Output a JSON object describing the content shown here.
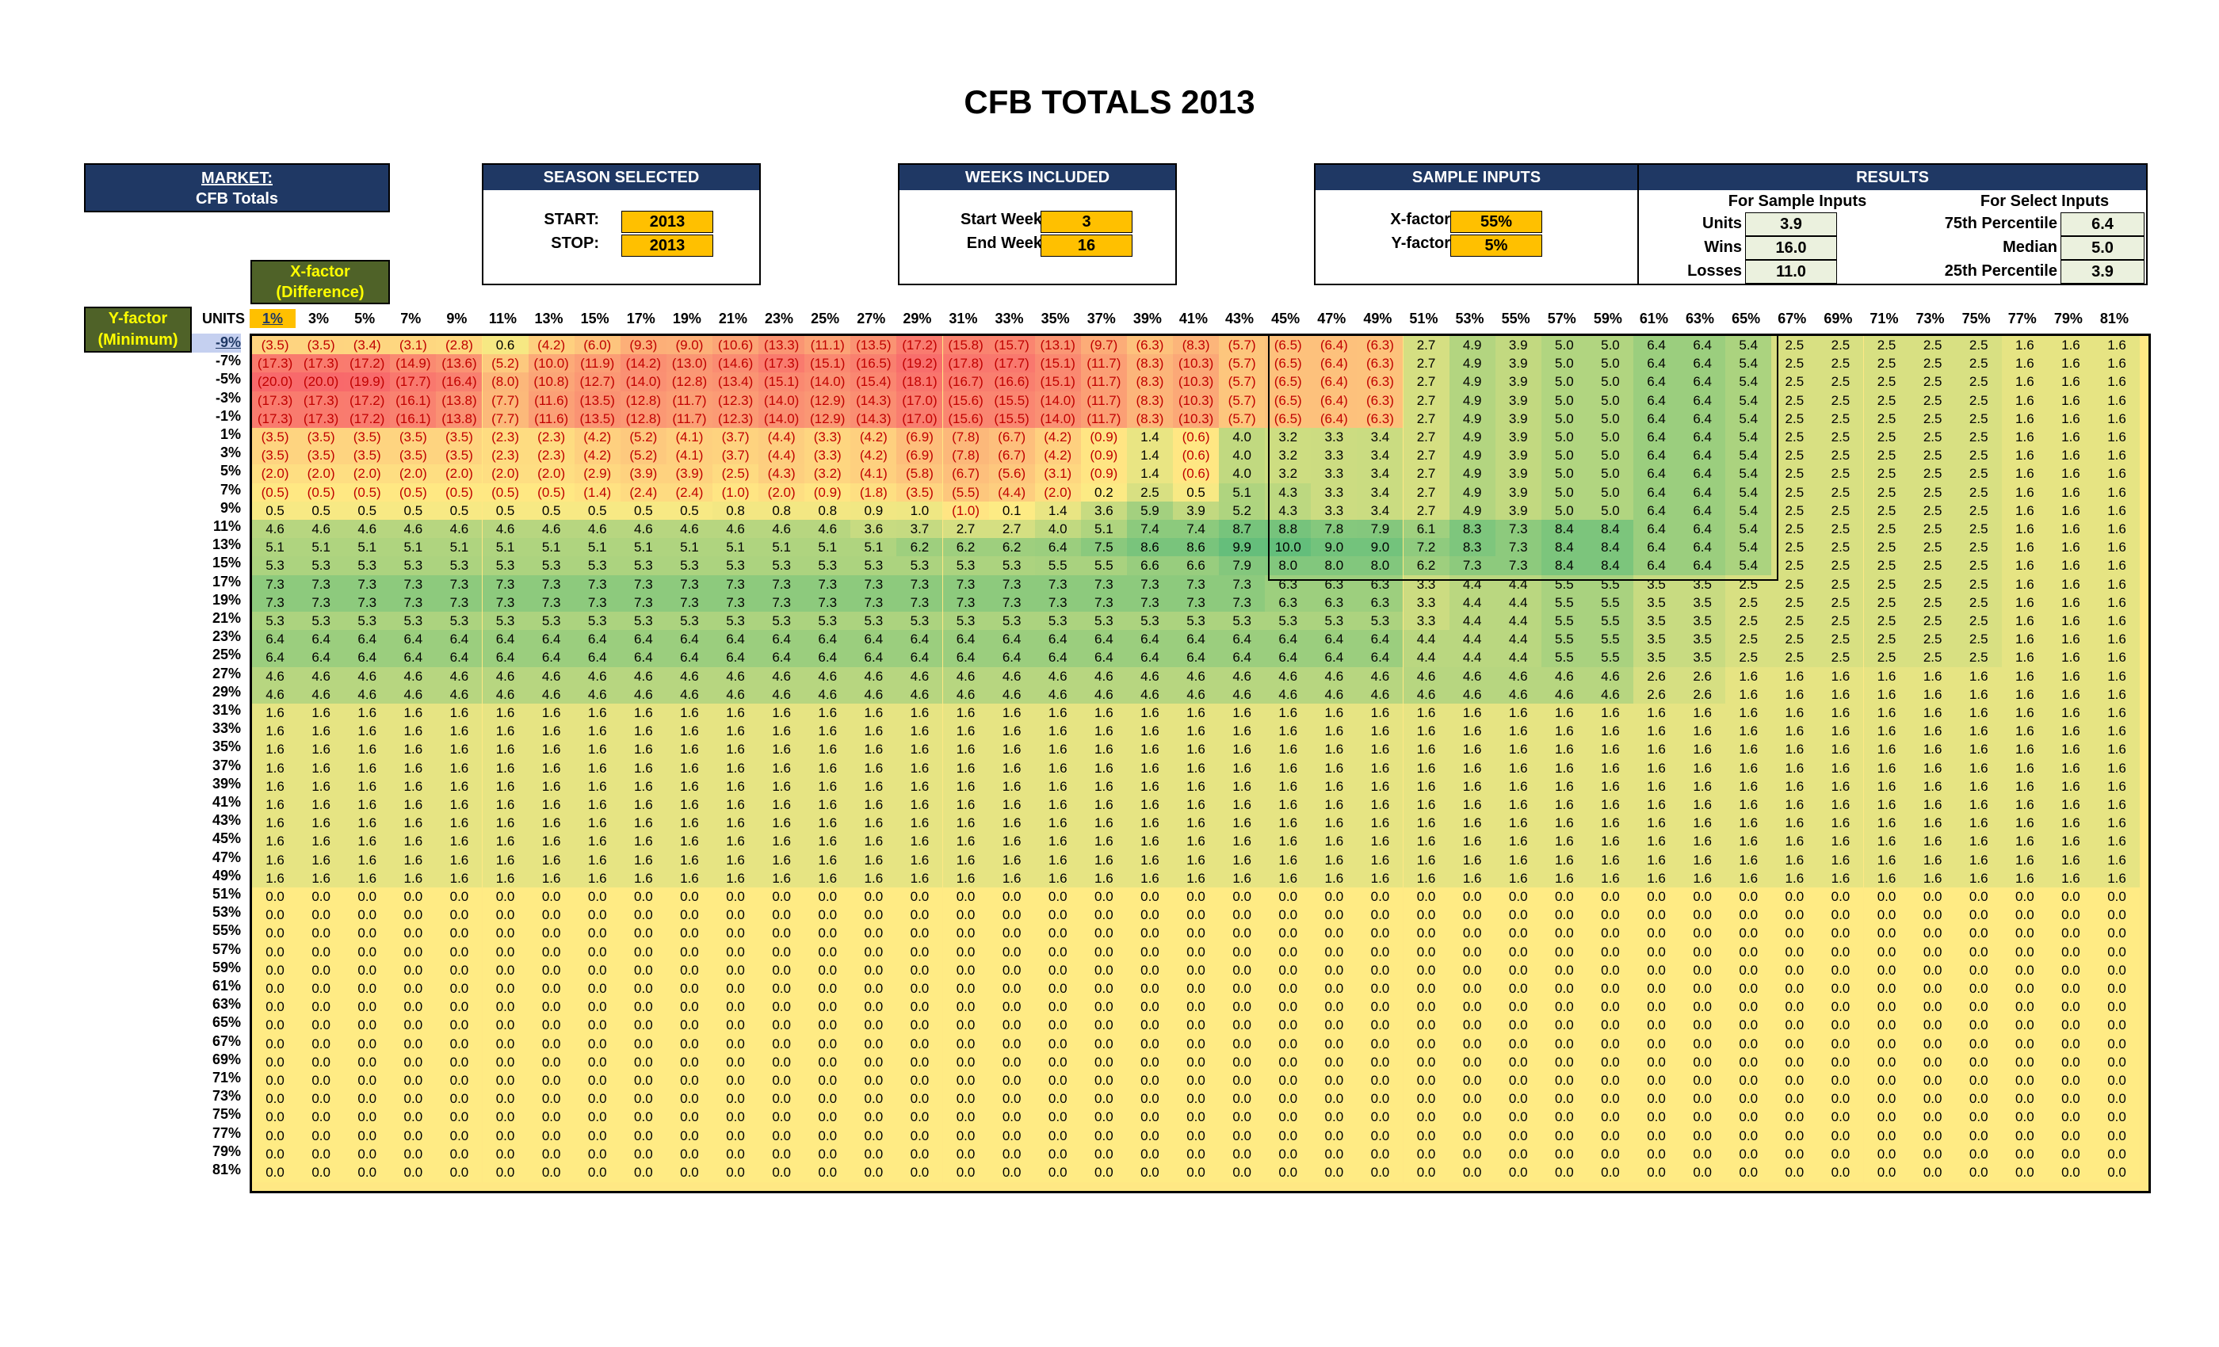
{
  "title": "CFB TOTALS 2013",
  "market": {
    "label": "MARKET:",
    "value": "CFB Totals"
  },
  "season": {
    "header": "SEASON SELECTED",
    "start_label": "START:",
    "start_value": "2013",
    "stop_label": "STOP:",
    "stop_value": "2013"
  },
  "weeks": {
    "header": "WEEKS INCLUDED",
    "start_label": "Start Week",
    "start_value": "3",
    "end_label": "End Week",
    "end_value": "16"
  },
  "sample_inputs": {
    "header": "SAMPLE INPUTS",
    "x_label": "X-factor",
    "x_value": "55%",
    "y_label": "Y-factor",
    "y_value": "5%"
  },
  "results": {
    "header": "RESULTS",
    "sample_header": "For Sample Inputs",
    "select_header": "For Select Inputs",
    "units_label": "Units",
    "units_value": "3.9",
    "wins_label": "Wins",
    "wins_value": "16.0",
    "losses_label": "Losses",
    "losses_value": "11.0",
    "p75_label": "75th Percentile",
    "p75_value": "6.4",
    "median_label": "Median",
    "median_value": "5.0",
    "p25_label": "25th Percentile",
    "p25_value": "3.9"
  },
  "x_factor_label": {
    "line1": "X-factor",
    "line2": "(Difference)"
  },
  "y_factor_label": {
    "line1": "Y-factor",
    "line2": "(Minimum)"
  },
  "units_header": "UNITS",
  "x_headers": [
    "1%",
    "3%",
    "5%",
    "7%",
    "9%",
    "11%",
    "13%",
    "15%",
    "17%",
    "19%",
    "21%",
    "23%",
    "25%",
    "27%",
    "29%",
    "31%",
    "33%",
    "35%",
    "37%",
    "39%",
    "41%",
    "43%",
    "45%",
    "47%",
    "49%",
    "51%",
    "53%",
    "55%",
    "57%",
    "59%",
    "61%",
    "63%",
    "65%",
    "67%",
    "69%",
    "71%",
    "73%",
    "75%",
    "77%",
    "79%",
    "81%"
  ],
  "y_headers": [
    "-9%",
    "-7%",
    "-5%",
    "-3%",
    "-1%",
    "1%",
    "3%",
    "5%",
    "7%",
    "9%",
    "11%",
    "13%",
    "15%",
    "17%",
    "19%",
    "21%",
    "23%",
    "25%",
    "27%",
    "29%",
    "31%",
    "33%",
    "35%",
    "37%",
    "39%",
    "41%",
    "43%",
    "45%",
    "47%",
    "49%",
    "51%",
    "53%",
    "55%",
    "57%",
    "59%",
    "61%",
    "63%",
    "65%",
    "67%",
    "69%",
    "71%",
    "73%",
    "75%",
    "77%",
    "79%",
    "81%"
  ],
  "grid": [
    "(3.5)|(3.5)|(3.4)|(3.1)|(2.8)|0.6|(4.2)|(6.0)|(9.3)|(9.0)|(10.6)|(13.3)|(11.1)|(13.5)|(17.2)|(15.8)|(15.7)|(13.1)|(9.7)|(6.3)|(8.3)|(5.7)|(6.5)|(6.4)|(6.3)|2.7|4.9|3.9|5.0|5.0|6.4|6.4|5.4|2.5|2.5|2.5|2.5|2.5|1.6|1.6|1.6",
    "(17.3)|(17.3)|(17.2)|(14.9)|(13.6)|(5.2)|(10.0)|(11.9)|(14.2)|(13.0)|(14.6)|(17.3)|(15.1)|(16.5)|(19.2)|(17.8)|(17.7)|(15.1)|(11.7)|(8.3)|(10.3)|(5.7)|(6.5)|(6.4)|(6.3)|2.7|4.9|3.9|5.0|5.0|6.4|6.4|5.4|2.5|2.5|2.5|2.5|2.5|1.6|1.6|1.6",
    "(20.0)|(20.0)|(19.9)|(17.7)|(16.4)|(8.0)|(10.8)|(12.7)|(14.0)|(12.8)|(13.4)|(15.1)|(14.0)|(15.4)|(18.1)|(16.7)|(16.6)|(15.1)|(11.7)|(8.3)|(10.3)|(5.7)|(6.5)|(6.4)|(6.3)|2.7|4.9|3.9|5.0|5.0|6.4|6.4|5.4|2.5|2.5|2.5|2.5|2.5|1.6|1.6|1.6",
    "(17.3)|(17.3)|(17.2)|(16.1)|(13.8)|(7.7)|(11.6)|(13.5)|(12.8)|(11.7)|(12.3)|(14.0)|(12.9)|(14.3)|(17.0)|(15.6)|(15.5)|(14.0)|(11.7)|(8.3)|(10.3)|(5.7)|(6.5)|(6.4)|(6.3)|2.7|4.9|3.9|5.0|5.0|6.4|6.4|5.4|2.5|2.5|2.5|2.5|2.5|1.6|1.6|1.6",
    "(17.3)|(17.3)|(17.2)|(16.1)|(13.8)|(7.7)|(11.6)|(13.5)|(12.8)|(11.7)|(12.3)|(14.0)|(12.9)|(14.3)|(17.0)|(15.6)|(15.5)|(14.0)|(11.7)|(8.3)|(10.3)|(5.7)|(6.5)|(6.4)|(6.3)|2.7|4.9|3.9|5.0|5.0|6.4|6.4|5.4|2.5|2.5|2.5|2.5|2.5|1.6|1.6|1.6",
    "(3.5)|(3.5)|(3.5)|(3.5)|(3.5)|(2.3)|(2.3)|(4.2)|(5.2)|(4.1)|(3.7)|(4.4)|(3.3)|(4.2)|(6.9)|(7.8)|(6.7)|(4.2)|(0.9)|1.4|(0.6)|4.0|3.2|3.3|3.4|2.7|4.9|3.9|5.0|5.0|6.4|6.4|5.4|2.5|2.5|2.5|2.5|2.5|1.6|1.6|1.6",
    "(3.5)|(3.5)|(3.5)|(3.5)|(3.5)|(2.3)|(2.3)|(4.2)|(5.2)|(4.1)|(3.7)|(4.4)|(3.3)|(4.2)|(6.9)|(7.8)|(6.7)|(4.2)|(0.9)|1.4|(0.6)|4.0|3.2|3.3|3.4|2.7|4.9|3.9|5.0|5.0|6.4|6.4|5.4|2.5|2.5|2.5|2.5|2.5|1.6|1.6|1.6",
    "(2.0)|(2.0)|(2.0)|(2.0)|(2.0)|(2.0)|(2.0)|(2.9)|(3.9)|(3.9)|(2.5)|(4.3)|(3.2)|(4.1)|(5.8)|(6.7)|(5.6)|(3.1)|(0.9)|1.4|(0.6)|4.0|3.2|3.3|3.4|2.7|4.9|3.9|5.0|5.0|6.4|6.4|5.4|2.5|2.5|2.5|2.5|2.5|1.6|1.6|1.6",
    "(0.5)|(0.5)|(0.5)|(0.5)|(0.5)|(0.5)|(0.5)|(1.4)|(2.4)|(2.4)|(1.0)|(2.0)|(0.9)|(1.8)|(3.5)|(5.5)|(4.4)|(2.0)|0.2|2.5|0.5|5.1|4.3|3.3|3.4|2.7|4.9|3.9|5.0|5.0|6.4|6.4|5.4|2.5|2.5|2.5|2.5|2.5|1.6|1.6|1.6",
    "0.5|0.5|0.5|0.5|0.5|0.5|0.5|0.5|0.5|0.5|0.8|0.8|0.8|0.9|1.0|(1.0)|0.1|1.4|3.6|5.9|3.9|5.2|4.3|3.3|3.4|2.7|4.9|3.9|5.0|5.0|6.4|6.4|5.4|2.5|2.5|2.5|2.5|2.5|1.6|1.6|1.6",
    "4.6|4.6|4.6|4.6|4.6|4.6|4.6|4.6|4.6|4.6|4.6|4.6|4.6|3.6|3.7|2.7|2.7|4.0|5.1|7.4|7.4|8.7|8.8|7.8|7.9|6.1|8.3|7.3|8.4|8.4|6.4|6.4|5.4|2.5|2.5|2.5|2.5|2.5|1.6|1.6|1.6",
    "5.1|5.1|5.1|5.1|5.1|5.1|5.1|5.1|5.1|5.1|5.1|5.1|5.1|5.1|6.2|6.2|6.2|6.4|7.5|8.6|8.6|9.9|10.0|9.0|9.0|7.2|8.3|7.3|8.4|8.4|6.4|6.4|5.4|2.5|2.5|2.5|2.5|2.5|1.6|1.6|1.6",
    "5.3|5.3|5.3|5.3|5.3|5.3|5.3|5.3|5.3|5.3|5.3|5.3|5.3|5.3|5.3|5.3|5.3|5.5|5.5|6.6|6.6|7.9|8.0|8.0|8.0|6.2|7.3|7.3|8.4|8.4|6.4|6.4|5.4|2.5|2.5|2.5|2.5|2.5|1.6|1.6|1.6",
    "7.3|7.3|7.3|7.3|7.3|7.3|7.3|7.3|7.3|7.3|7.3|7.3|7.3|7.3|7.3|7.3|7.3|7.3|7.3|7.3|7.3|7.3|6.3|6.3|6.3|3.3|4.4|4.4|5.5|5.5|3.5|3.5|2.5|2.5|2.5|2.5|2.5|2.5|1.6|1.6|1.6",
    "7.3|7.3|7.3|7.3|7.3|7.3|7.3|7.3|7.3|7.3|7.3|7.3|7.3|7.3|7.3|7.3|7.3|7.3|7.3|7.3|7.3|7.3|6.3|6.3|6.3|3.3|4.4|4.4|5.5|5.5|3.5|3.5|2.5|2.5|2.5|2.5|2.5|2.5|1.6|1.6|1.6",
    "5.3|5.3|5.3|5.3|5.3|5.3|5.3|5.3|5.3|5.3|5.3|5.3|5.3|5.3|5.3|5.3|5.3|5.3|5.3|5.3|5.3|5.3|5.3|5.3|5.3|3.3|4.4|4.4|5.5|5.5|3.5|3.5|2.5|2.5|2.5|2.5|2.5|2.5|1.6|1.6|1.6",
    "6.4|6.4|6.4|6.4|6.4|6.4|6.4|6.4|6.4|6.4|6.4|6.4|6.4|6.4|6.4|6.4|6.4|6.4|6.4|6.4|6.4|6.4|6.4|6.4|6.4|4.4|4.4|4.4|5.5|5.5|3.5|3.5|2.5|2.5|2.5|2.5|2.5|2.5|1.6|1.6|1.6",
    "6.4|6.4|6.4|6.4|6.4|6.4|6.4|6.4|6.4|6.4|6.4|6.4|6.4|6.4|6.4|6.4|6.4|6.4|6.4|6.4|6.4|6.4|6.4|6.4|6.4|4.4|4.4|4.4|5.5|5.5|3.5|3.5|2.5|2.5|2.5|2.5|2.5|2.5|1.6|1.6|1.6",
    "4.6|4.6|4.6|4.6|4.6|4.6|4.6|4.6|4.6|4.6|4.6|4.6|4.6|4.6|4.6|4.6|4.6|4.6|4.6|4.6|4.6|4.6|4.6|4.6|4.6|4.6|4.6|4.6|4.6|4.6|2.6|2.6|1.6|1.6|1.6|1.6|1.6|1.6|1.6|1.6|1.6",
    "4.6|4.6|4.6|4.6|4.6|4.6|4.6|4.6|4.6|4.6|4.6|4.6|4.6|4.6|4.6|4.6|4.6|4.6|4.6|4.6|4.6|4.6|4.6|4.6|4.6|4.6|4.6|4.6|4.6|4.6|2.6|2.6|1.6|1.6|1.6|1.6|1.6|1.6|1.6|1.6|1.6"
  ],
  "grid_fill_low": "1.6",
  "grid_fill_low_rows": 10,
  "grid_fill_zero": "0.0",
  "grid_fill_zero_rows": 16,
  "colors": {
    "navy": "#1f3864",
    "gold": "#ffc000",
    "olive": "#4f6228",
    "red": "#f8696b",
    "yellow": "#ffeb84",
    "green": "#63be7b"
  }
}
